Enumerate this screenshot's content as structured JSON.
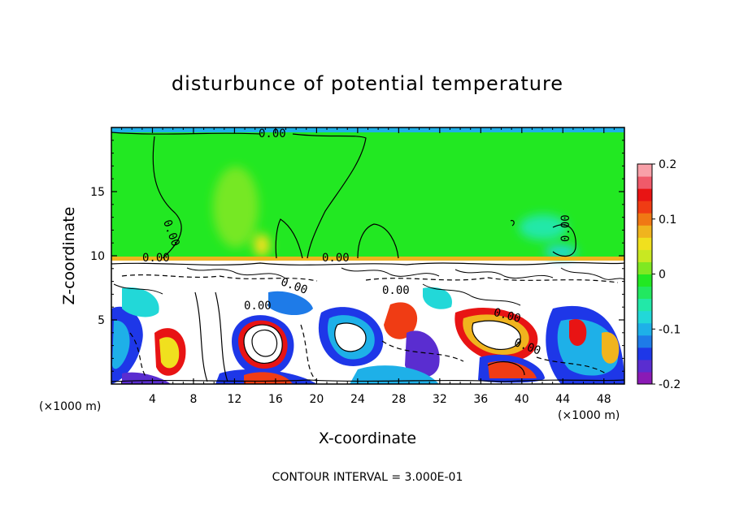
{
  "chart_data": {
    "type": "heatmap",
    "title": "disturbunce of potential temperature",
    "xlabel": "X-coordinate",
    "ylabel": "Z-coordinate",
    "x_unit_left": "(×1000 m)",
    "x_unit_right": "(×1000 m)",
    "xlim": [
      0,
      50
    ],
    "ylim": [
      0,
      20
    ],
    "x_ticks": [
      "4",
      "8",
      "12",
      "16",
      "20",
      "24",
      "28",
      "32",
      "36",
      "40",
      "44",
      "48"
    ],
    "y_ticks": [
      "5",
      "10",
      "15"
    ],
    "colorbar": {
      "min": -0.2,
      "max": 0.2,
      "tick_labels": [
        "0.2",
        "0.1",
        "0",
        "-0.1",
        "-0.2"
      ],
      "colors": [
        "#8a1ab5",
        "#5a2dd0",
        "#1e37e8",
        "#1e7be8",
        "#1eb0e8",
        "#22d8d8",
        "#22e8a8",
        "#22e860",
        "#22e822",
        "#7fe822",
        "#c8e822",
        "#f0e01e",
        "#f0b41e",
        "#f07814",
        "#f03c14",
        "#e81414",
        "#f05a6a",
        "#f8a0a8"
      ]
    },
    "contour_labels": [
      "0.00",
      "0.00",
      "0.00",
      "0.00",
      "0.00",
      "0.00",
      "0.00",
      "0.00",
      "0.00",
      "0.00"
    ],
    "contour_interval_text": "CONTOUR INTERVAL = 3.000E-01"
  }
}
